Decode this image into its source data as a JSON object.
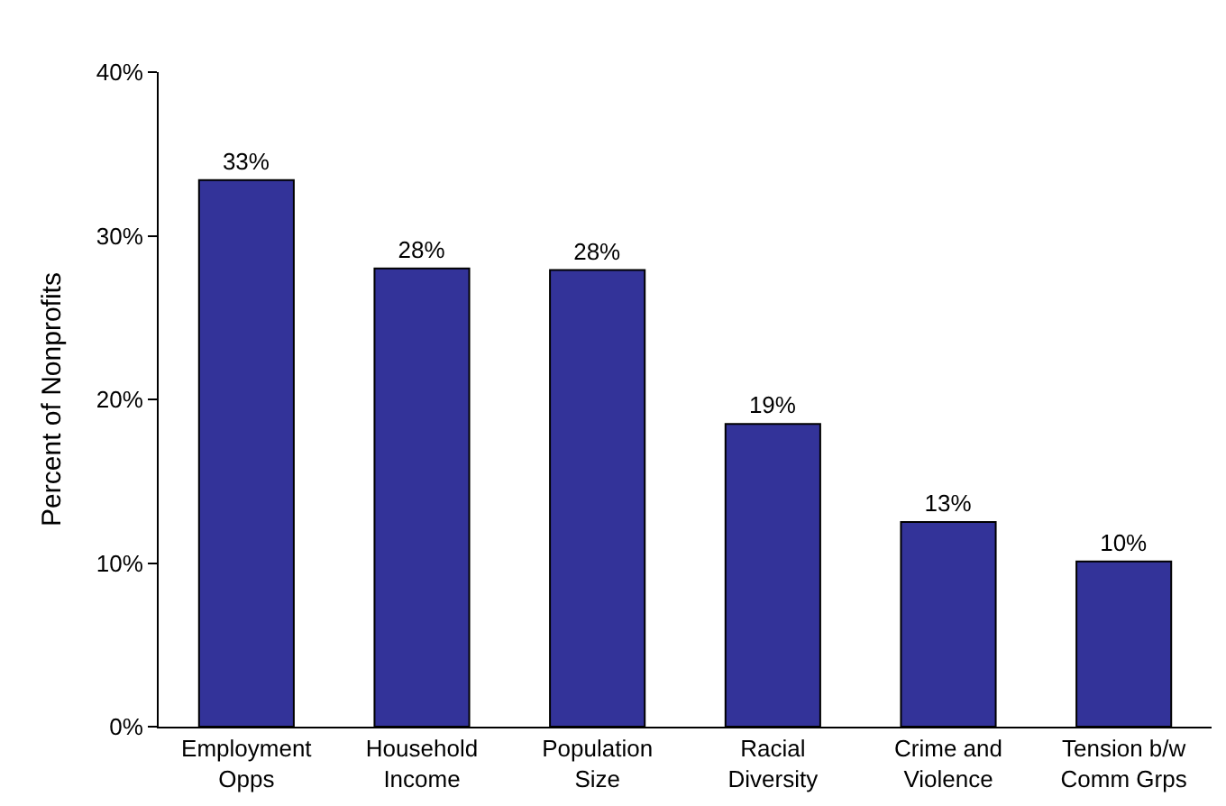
{
  "chart_data": {
    "type": "bar",
    "ylabel": "Percent of Nonprofits",
    "categories": [
      "Employment\nOpps",
      "Household\nIncome",
      "Population\nSize",
      "Racial\nDiversity",
      "Crime and\nViolence",
      "Tension b/w\nComm Grps"
    ],
    "values": [
      33.4,
      28.0,
      27.9,
      18.5,
      12.5,
      10.1
    ],
    "value_labels": [
      "33%",
      "28%",
      "28%",
      "19%",
      "13%",
      "10%"
    ],
    "color": "#333399",
    "ylim": [
      0,
      40
    ],
    "yticks": [
      {
        "value": 0,
        "label": "0%"
      },
      {
        "value": 10,
        "label": "10%"
      },
      {
        "value": 20,
        "label": "20%"
      },
      {
        "value": 30,
        "label": "30%"
      },
      {
        "value": 40,
        "label": "40%"
      }
    ]
  }
}
